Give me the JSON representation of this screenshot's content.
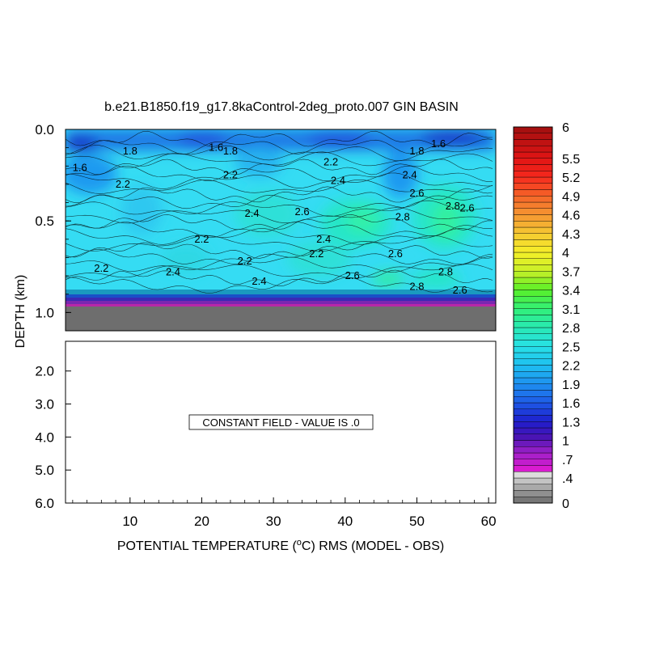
{
  "chart_data": {
    "type": "heatmap",
    "title": "b.e21.B1850.f19_g17.8kaControl-2deg_proto.007 GIN BASIN",
    "xlabel": "POTENTIAL TEMPERATURE (°C) RMS (MODEL - OBS)",
    "xlabel_parts": {
      "before": "POTENTIAL TEMPERATURE (",
      "sup": "o",
      "after": "C) RMS (MODEL - OBS)"
    },
    "ylabel": "DEPTH (km)",
    "xlim": [
      1,
      61
    ],
    "x_ticks": [
      10,
      20,
      30,
      40,
      50,
      60
    ],
    "upper_panel": {
      "ylim": [
        0.0,
        1.1
      ],
      "y_ticks": [
        0.0,
        0.5,
        1.0
      ],
      "y_tick_labels": [
        "0.0",
        "0.5",
        "1.0"
      ],
      "bottom_topography_depth_km": 0.98,
      "contour_labels": [
        {
          "text": "1.6",
          "x": 3,
          "y": 0.21
        },
        {
          "text": "1.6",
          "x": 22,
          "y": 0.1
        },
        {
          "text": "1.6",
          "x": 53,
          "y": 0.08
        },
        {
          "text": "1.8",
          "x": 10,
          "y": 0.12
        },
        {
          "text": "1.8",
          "x": 24,
          "y": 0.12
        },
        {
          "text": "1.8",
          "x": 50,
          "y": 0.12
        },
        {
          "text": "2.2",
          "x": 9,
          "y": 0.3
        },
        {
          "text": "2.2",
          "x": 24,
          "y": 0.25
        },
        {
          "text": "2.2",
          "x": 20,
          "y": 0.6
        },
        {
          "text": "2.2",
          "x": 26,
          "y": 0.72
        },
        {
          "text": "2.2",
          "x": 6,
          "y": 0.76
        },
        {
          "text": "2.2",
          "x": 36,
          "y": 0.68
        },
        {
          "text": "2.2",
          "x": 38,
          "y": 0.18
        },
        {
          "text": "2.4",
          "x": 39,
          "y": 0.28
        },
        {
          "text": "2.4",
          "x": 27,
          "y": 0.46
        },
        {
          "text": "2.4",
          "x": 37,
          "y": 0.6
        },
        {
          "text": "2.4",
          "x": 16,
          "y": 0.78
        },
        {
          "text": "2.4",
          "x": 28,
          "y": 0.83
        },
        {
          "text": "2.4",
          "x": 49,
          "y": 0.25
        },
        {
          "text": "2.6",
          "x": 34,
          "y": 0.45
        },
        {
          "text": "2.6",
          "x": 41,
          "y": 0.8
        },
        {
          "text": "2.6",
          "x": 47,
          "y": 0.68
        },
        {
          "text": "2.6",
          "x": 50,
          "y": 0.35
        },
        {
          "text": "2.6",
          "x": 57,
          "y": 0.43
        },
        {
          "text": "2.6",
          "x": 56,
          "y": 0.88
        },
        {
          "text": "2.8",
          "x": 48,
          "y": 0.48
        },
        {
          "text": "2.8",
          "x": 55,
          "y": 0.42
        },
        {
          "text": "2.8",
          "x": 54,
          "y": 0.78
        },
        {
          "text": "2.8",
          "x": 50,
          "y": 0.86
        }
      ]
    },
    "lower_panel": {
      "ylim": [
        1.1,
        6.0
      ],
      "y_ticks": [
        2.0,
        3.0,
        4.0,
        5.0,
        6.0
      ],
      "y_tick_labels": [
        "2.0",
        "3.0",
        "4.0",
        "5.0",
        "6.0"
      ],
      "message": "CONSTANT FIELD - VALUE IS .0"
    },
    "colorbar": {
      "min": 0,
      "max": 6,
      "labels": [
        "6",
        "5.5",
        "5.2",
        "4.9",
        "4.6",
        "4.3",
        "4",
        "3.7",
        "3.4",
        "3.1",
        "2.8",
        "2.5",
        "2.2",
        "1.9",
        "1.6",
        "1.3",
        "1",
        ".7",
        ".4",
        "0"
      ],
      "label_values": [
        6,
        5.5,
        5.2,
        4.9,
        4.6,
        4.3,
        4.0,
        3.7,
        3.4,
        3.1,
        2.8,
        2.5,
        2.2,
        1.9,
        1.6,
        1.3,
        1.0,
        0.7,
        0.4,
        0
      ]
    }
  }
}
